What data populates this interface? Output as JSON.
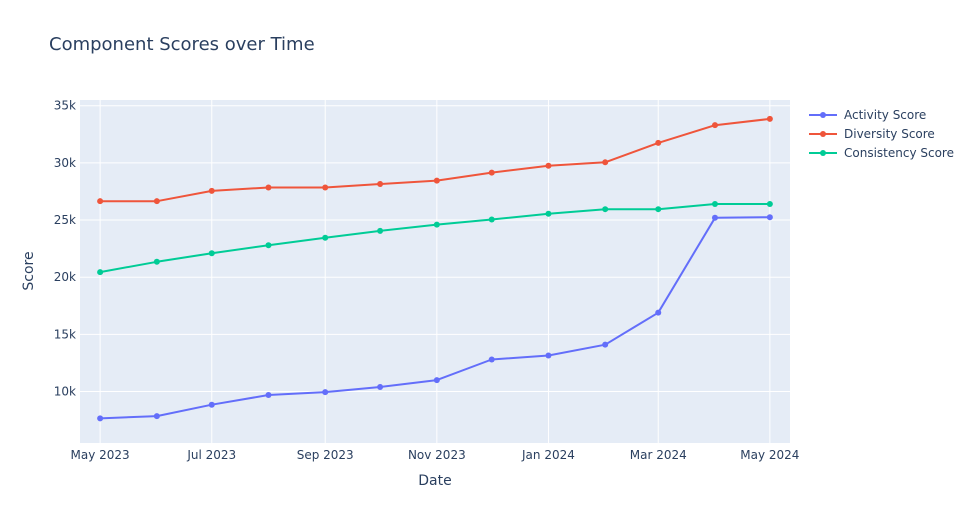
{
  "chart_data": {
    "type": "line",
    "title": "Component Scores over Time",
    "xlabel": "Date",
    "ylabel": "Score",
    "x": [
      "2023-05-01",
      "2023-06-01",
      "2023-07-01",
      "2023-08-01",
      "2023-09-01",
      "2023-10-01",
      "2023-11-01",
      "2023-12-01",
      "2024-01-01",
      "2024-02-01",
      "2024-03-01",
      "2024-04-01",
      "2024-05-01"
    ],
    "x_ticks": [
      {
        "date": "2023-05-01",
        "label": "May 2023"
      },
      {
        "date": "2023-07-01",
        "label": "Jul 2023"
      },
      {
        "date": "2023-09-01",
        "label": "Sep 2023"
      },
      {
        "date": "2023-11-01",
        "label": "Nov 2023"
      },
      {
        "date": "2024-01-01",
        "label": "Jan 2024"
      },
      {
        "date": "2024-03-01",
        "label": "Mar 2024"
      },
      {
        "date": "2024-05-01",
        "label": "May 2024"
      }
    ],
    "xlim": [
      "2023-04-20",
      "2024-05-12"
    ],
    "ylim": [
      5500,
      35500
    ],
    "y_ticks": [
      {
        "value": 10000,
        "label": "10k"
      },
      {
        "value": 15000,
        "label": "15k"
      },
      {
        "value": 20000,
        "label": "20k"
      },
      {
        "value": 25000,
        "label": "25k"
      },
      {
        "value": 30000,
        "label": "30k"
      },
      {
        "value": 35000,
        "label": "35k"
      }
    ],
    "grid": true,
    "legend_position": "top-right",
    "plot_background": "#E5ECF6",
    "series": [
      {
        "name": "Activity Score",
        "color": "#636EFA",
        "values": [
          7650,
          7850,
          8850,
          9700,
          9950,
          10400,
          11000,
          12800,
          13150,
          14100,
          16900,
          25200,
          25250
        ]
      },
      {
        "name": "Diversity Score",
        "color": "#EF553B",
        "values": [
          26650,
          26650,
          27550,
          27850,
          27850,
          28150,
          28450,
          29150,
          29750,
          30050,
          31750,
          33300,
          33850
        ]
      },
      {
        "name": "Consistency Score",
        "color": "#00CC96",
        "values": [
          20450,
          21350,
          22100,
          22800,
          23450,
          24050,
          24600,
          25050,
          25550,
          25950,
          25950,
          26400,
          26400
        ]
      }
    ]
  }
}
